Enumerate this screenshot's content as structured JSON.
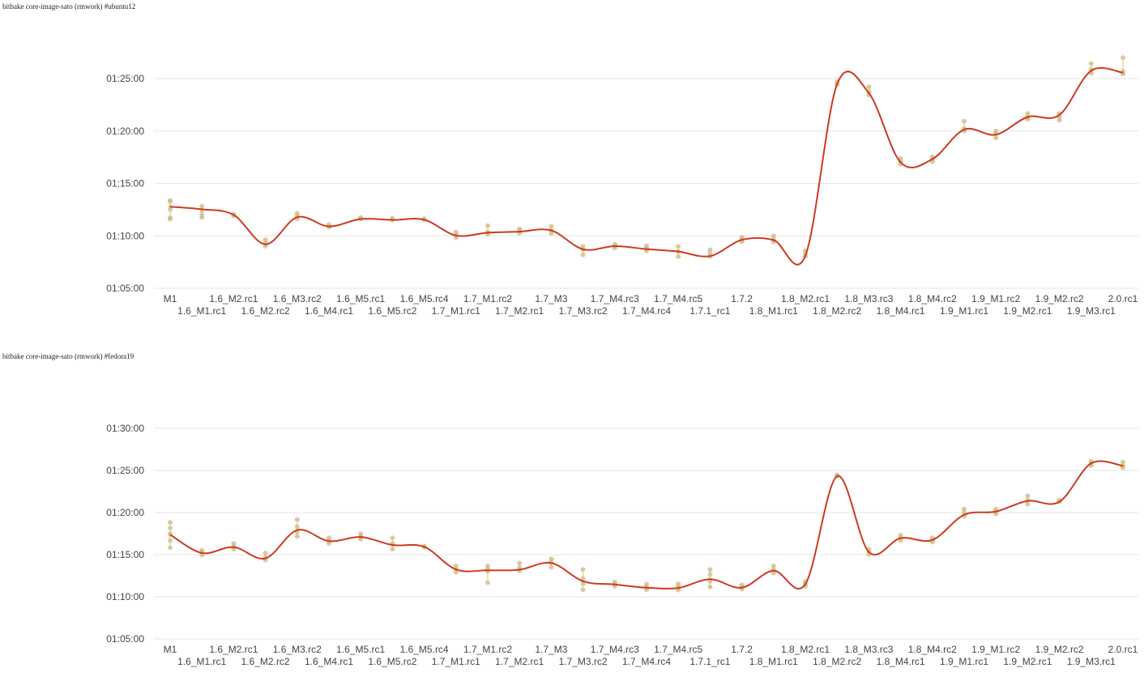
{
  "chart_data": [
    {
      "type": "line",
      "title": "bitbake core-image-sato (rmwork) #ubuntu12",
      "categories": [
        "M1",
        "1.6_M1.rc1",
        "1.6_M2.rc1",
        "1.6_M2.rc2",
        "1.6_M3.rc2",
        "1.6_M4.rc1",
        "1.6_M5.rc1",
        "1.6_M5.rc2",
        "1.6_M5.rc4",
        "1.7_M1.rc1",
        "1.7_M1.rc2",
        "1.7_M2.rc1",
        "1.7_M3",
        "1.7_M3.rc2",
        "1.7_M4.rc3",
        "1.7_M4.rc4",
        "1.7_M4.rc5",
        "1.7.1_rc1",
        "1.7.2",
        "1.8_M1.rc1",
        "1.8_M2.rc1",
        "1.8_M2.rc2",
        "1.8_M3.rc3",
        "1.8_M4.rc1",
        "1.8_M4.rc2",
        "1.9_M1.rc1",
        "1.9_M1.rc2",
        "1.9_M2.rc1",
        "1.9_M2.rc2",
        "1.9_M3.rc1",
        "2.0.rc1"
      ],
      "yticks": [
        "01:05:00",
        "01:10:00",
        "01:15:00",
        "01:20:00",
        "01:25:00"
      ],
      "ylim_seconds": [
        3900,
        5100
      ],
      "series": [
        {
          "values_seconds": [
            4367,
            4352,
            4320,
            4152,
            4307,
            4254,
            4296,
            4291,
            4292,
            4202,
            4218,
            4224,
            4231,
            4123,
            4141,
            4124,
            4110,
            4084,
            4177,
            4176,
            4086,
            5068,
            5017,
            4621,
            4639,
            4808,
            4779,
            4880,
            4892,
            5145,
            5134
          ]
        }
      ],
      "samples_seconds": [
        [
          4402,
          4397,
          4351,
          4303,
          4296
        ],
        [
          4370,
          4345,
          4321,
          4305
        ],
        [
          4324,
          4314
        ],
        [
          4178,
          4160,
          4141
        ],
        [
          4330,
          4313,
          4296
        ],
        [
          4265,
          4250
        ],
        [
          4305,
          4297
        ],
        [
          4301,
          4292
        ],
        [
          4298,
          4292
        ],
        [
          4222,
          4206,
          4190
        ],
        [
          4258,
          4222,
          4210
        ],
        [
          4240,
          4230,
          4216
        ],
        [
          4255,
          4235,
          4214
        ],
        [
          4140,
          4121,
          4091
        ],
        [
          4152,
          4143,
          4130
        ],
        [
          4142,
          4128,
          4114
        ],
        [
          4140,
          4110,
          4081
        ],
        [
          4120,
          4100,
          4082
        ],
        [
          4192,
          4180,
          4166
        ],
        [
          4200,
          4182,
          4166
        ],
        [
          4116,
          4098,
          4082
        ],
        [
          5082,
          5066
        ],
        [
          5052,
          5025,
          5006
        ],
        [
          4643,
          4628,
          4610
        ],
        [
          4652,
          4640,
          4624
        ],
        [
          4856,
          4815,
          4800
        ],
        [
          4800,
          4786,
          4760
        ],
        [
          4900,
          4880,
          4866
        ],
        [
          4900,
          4880,
          4862
        ],
        [
          5186,
          5152,
          5130
        ],
        [
          5220,
          5140,
          5126
        ]
      ],
      "xlabel": "",
      "ylabel": ""
    },
    {
      "type": "line",
      "title": "bitbake core-image-sato (rmwork) #fedora19",
      "categories": [
        "M1",
        "1.6_M1.rc1",
        "1.6_M2.rc1",
        "1.6_M2.rc2",
        "1.6_M3.rc2",
        "1.6_M4.rc1",
        "1.6_M5.rc1",
        "1.6_M5.rc2",
        "1.6_M5.rc4",
        "1.7_M1.rc1",
        "1.7_M1.rc2",
        "1.7_M2.rc1",
        "1.7_M3",
        "1.7_M3.rc2",
        "1.7_M4.rc3",
        "1.7_M4.rc4",
        "1.7_M4.rc5",
        "1.7.1_rc1",
        "1.7.2",
        "1.8_M1.rc1",
        "1.8_M2.rc1",
        "1.8_M2.rc2",
        "1.8_M3.rc3",
        "1.8_M4.rc1",
        "1.8_M4.rc2",
        "1.9_M1.rc1",
        "1.9_M1.rc2",
        "1.9_M2.rc1",
        "1.9_M2.rc2",
        "1.9_M3.rc1",
        "2.0.rc1"
      ],
      "yticks": [
        "01:05:00",
        "01:10:00",
        "01:15:00",
        "01:20:00",
        "01:25:00",
        "01:30:00"
      ],
      "ylim_seconds": [
        3900,
        5400
      ],
      "series": [
        {
          "values_seconds": [
            4642,
            4512,
            4554,
            4474,
            4675,
            4597,
            4626,
            4569,
            4556,
            4395,
            4389,
            4393,
            4441,
            4311,
            4288,
            4265,
            4263,
            4325,
            4265,
            4386,
            4290,
            5059,
            4519,
            4618,
            4605,
            4784,
            4807,
            4883,
            4877,
            5151,
            5133
          ]
        }
      ],
      "samples_seconds": [
        [
          4730,
          4690,
          4650,
          4600,
          4550
        ],
        [
          4532,
          4515,
          4498
        ],
        [
          4580,
          4560,
          4540
        ],
        [
          4512,
          4480,
          4462
        ],
        [
          4750,
          4700,
          4660,
          4630
        ],
        [
          4620,
          4600,
          4580
        ],
        [
          4650,
          4630,
          4610
        ],
        [
          4620,
          4580,
          4540
        ],
        [
          4562,
          4555
        ],
        [
          4420,
          4395,
          4375
        ],
        [
          4420,
          4400,
          4380,
          4300
        ],
        [
          4440,
          4410,
          4385
        ],
        [
          4470,
          4445,
          4410
        ],
        [
          4395,
          4330,
          4290,
          4250
        ],
        [
          4305,
          4290,
          4275
        ],
        [
          4290,
          4270,
          4250
        ],
        [
          4292,
          4270,
          4248
        ],
        [
          4395,
          4360,
          4310,
          4270
        ],
        [
          4285,
          4270,
          4255
        ],
        [
          4420,
          4395,
          4370
        ],
        [
          4310,
          4292,
          4275
        ],
        [
          5068,
          5060
        ],
        [
          4540,
          4520,
          4502
        ],
        [
          4640,
          4620,
          4600
        ],
        [
          4620,
          4605,
          4590
        ],
        [
          4825,
          4800,
          4775
        ],
        [
          4825,
          4810,
          4790
        ],
        [
          4920,
          4890,
          4860
        ],
        [
          4890,
          4878
        ],
        [
          5165,
          5150,
          5135
        ],
        [
          5160,
          5135,
          5120
        ]
      ],
      "xlabel": "",
      "ylabel": ""
    }
  ],
  "colors": {
    "line": "#cc3a24",
    "grid": "#e6e6e6",
    "sample": "#b3b3b3",
    "error_bar": "#f0c040",
    "text": "#444444"
  }
}
